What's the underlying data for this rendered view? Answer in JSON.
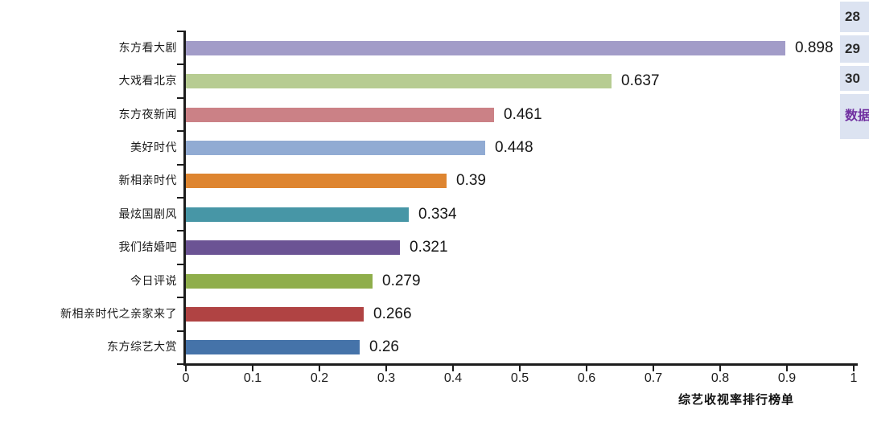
{
  "chart_data": {
    "type": "bar",
    "orientation": "horizontal",
    "title": "综艺收视率排行榜单",
    "categories": [
      "东方看大剧",
      "大戏看北京",
      "东方夜新闻",
      "美好时代",
      "新相亲时代",
      "最炫国剧风",
      "我们结婚吧",
      "今日评说",
      "新相亲时代之亲家来了",
      "东方综艺大赏"
    ],
    "values": [
      0.898,
      0.637,
      0.461,
      0.448,
      0.39,
      0.334,
      0.321,
      0.279,
      0.266,
      0.26
    ],
    "value_labels": [
      "0.898",
      "0.637",
      "0.461",
      "0.448",
      "0.39",
      "0.334",
      "0.321",
      "0.279",
      "0.266",
      "0.26"
    ],
    "bar_colors": [
      "#a29cc8",
      "#b7cc92",
      "#cb8186",
      "#91abd3",
      "#de8530",
      "#4796a6",
      "#6b5394",
      "#8fae4b",
      "#b04343",
      "#4573a9"
    ],
    "xlim": [
      0,
      1
    ],
    "x_tick_labels": [
      "0",
      "0.1",
      "0.2",
      "0.3",
      "0.4",
      "0.5",
      "0.6",
      "0.7",
      "0.8",
      "0.9",
      "1"
    ],
    "xlabel": "综艺收视率排行榜单",
    "ylabel": "",
    "grid": false,
    "legend": "none",
    "axis_color": "#1c1c1c"
  },
  "right_rail": {
    "background": "#dce3f1",
    "cells": [
      {
        "label": "28",
        "type": "row-number",
        "color": "#2b2b2b"
      },
      {
        "label": "29",
        "type": "row-number",
        "color": "#2b2b2b"
      },
      {
        "label": "30",
        "type": "row-number",
        "color": "#2b2b2b"
      },
      {
        "label": "数据",
        "type": "text",
        "color": "#7030a0"
      }
    ]
  }
}
